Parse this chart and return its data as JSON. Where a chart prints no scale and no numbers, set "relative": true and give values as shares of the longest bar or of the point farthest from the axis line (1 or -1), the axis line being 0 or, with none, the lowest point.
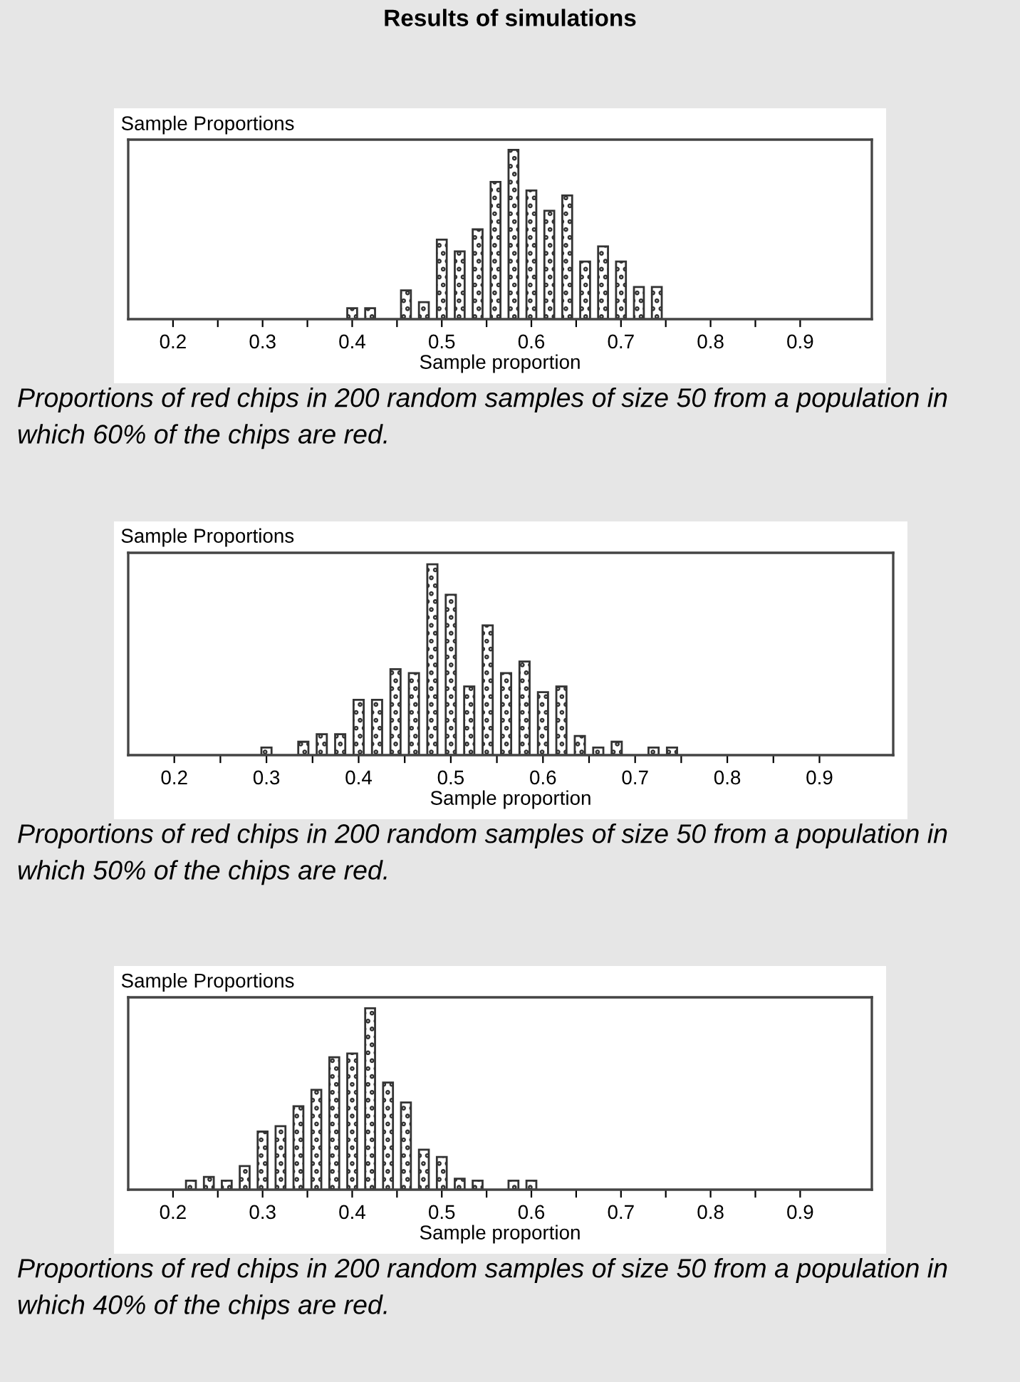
{
  "chart_data": [
    {
      "type": "bar",
      "title": "Results of simulations",
      "subtitle": "Sample Proportions",
      "xlabel": "Sample proportion",
      "relative": true,
      "grid": false,
      "color": "#333333",
      "x": [
        0.4,
        0.42,
        0.46,
        0.48,
        0.5,
        0.52,
        0.54,
        0.56,
        0.58,
        0.6,
        0.62,
        0.64,
        0.66,
        0.68,
        0.7,
        0.72,
        0.74
      ],
      "values": [
        0.065,
        0.065,
        0.17,
        0.1,
        0.47,
        0.4,
        0.53,
        0.81,
        1,
        0.76,
        0.64,
        0.73,
        0.34,
        0.43,
        0.34,
        0.19,
        0.19
      ],
      "xlim": [
        0.15,
        0.98
      ],
      "xticks": [
        0.2,
        {
          "value": 0.25,
          "label": null
        },
        0.3,
        {
          "value": 0.35,
          "label": null
        },
        0.4,
        {
          "value": 0.45,
          "label": null
        },
        0.5,
        {
          "value": 0.55,
          "label": null
        },
        0.6,
        {
          "value": 0.65,
          "label": null
        },
        0.7,
        {
          "value": 0.75,
          "label": null
        },
        0.8,
        {
          "value": 0.85,
          "label": null
        },
        0.9
      ],
      "tick_labels": "x",
      "annotations": [
        "Proportions of red chips in 200 random samples of size 50 from a population in which 60% of the chips are red."
      ]
    },
    {
      "type": "bar",
      "subtitle": "Sample Proportions",
      "xlabel": "Sample proportion",
      "relative": true,
      "grid": false,
      "color": "#333333",
      "x": [
        0.3,
        0.34,
        0.36,
        0.38,
        0.4,
        0.42,
        0.44,
        0.46,
        0.48,
        0.5,
        0.52,
        0.54,
        0.56,
        0.58,
        0.6,
        0.62,
        0.64,
        0.66,
        0.68,
        0.72,
        0.74
      ],
      "values": [
        0.04,
        0.07,
        0.11,
        0.11,
        0.29,
        0.29,
        0.45,
        0.43,
        1,
        0.84,
        0.36,
        0.68,
        0.43,
        0.49,
        0.33,
        0.36,
        0.1,
        0.04,
        0.07,
        0.04,
        0.04
      ],
      "xlim": [
        0.15,
        0.98
      ],
      "xticks": [
        0.2,
        {
          "value": 0.25,
          "label": null
        },
        0.3,
        {
          "value": 0.35,
          "label": null
        },
        0.4,
        {
          "value": 0.45,
          "label": null
        },
        0.5,
        {
          "value": 0.55,
          "label": null
        },
        0.6,
        {
          "value": 0.65,
          "label": null
        },
        0.7,
        {
          "value": 0.75,
          "label": null
        },
        0.8,
        {
          "value": 0.85,
          "label": null
        },
        0.9
      ],
      "tick_labels": "x",
      "annotations": [
        "Proportions of red chips in 200 random samples of size 50 from a population in which 50% of the chips are red."
      ]
    },
    {
      "type": "bar",
      "subtitle": "Sample Proportions",
      "xlabel": "Sample proportion",
      "relative": true,
      "grid": false,
      "color": "#333333",
      "x": [
        0.22,
        0.24,
        0.26,
        0.28,
        0.3,
        0.32,
        0.34,
        0.36,
        0.38,
        0.4,
        0.42,
        0.44,
        0.46,
        0.48,
        0.5,
        0.52,
        0.54,
        0.58,
        0.6
      ],
      "values": [
        0.05,
        0.07,
        0.05,
        0.13,
        0.32,
        0.35,
        0.46,
        0.55,
        0.73,
        0.75,
        1,
        0.59,
        0.48,
        0.22,
        0.18,
        0.06,
        0.05,
        0.05,
        0.05
      ],
      "xlim": [
        0.15,
        0.98
      ],
      "xticks": [
        0.2,
        {
          "value": 0.25,
          "label": null
        },
        0.3,
        {
          "value": 0.35,
          "label": null
        },
        0.4,
        {
          "value": 0.45,
          "label": null
        },
        0.5,
        {
          "value": 0.55,
          "label": null
        },
        0.6,
        {
          "value": 0.65,
          "label": null
        },
        0.7,
        {
          "value": 0.75,
          "label": null
        },
        0.8,
        {
          "value": 0.85,
          "label": null
        },
        0.9
      ],
      "tick_labels": "x",
      "annotations": [
        "Proportions of red chips in 200 random samples of size 50 from a population in which 40% of the chips are red."
      ]
    }
  ]
}
